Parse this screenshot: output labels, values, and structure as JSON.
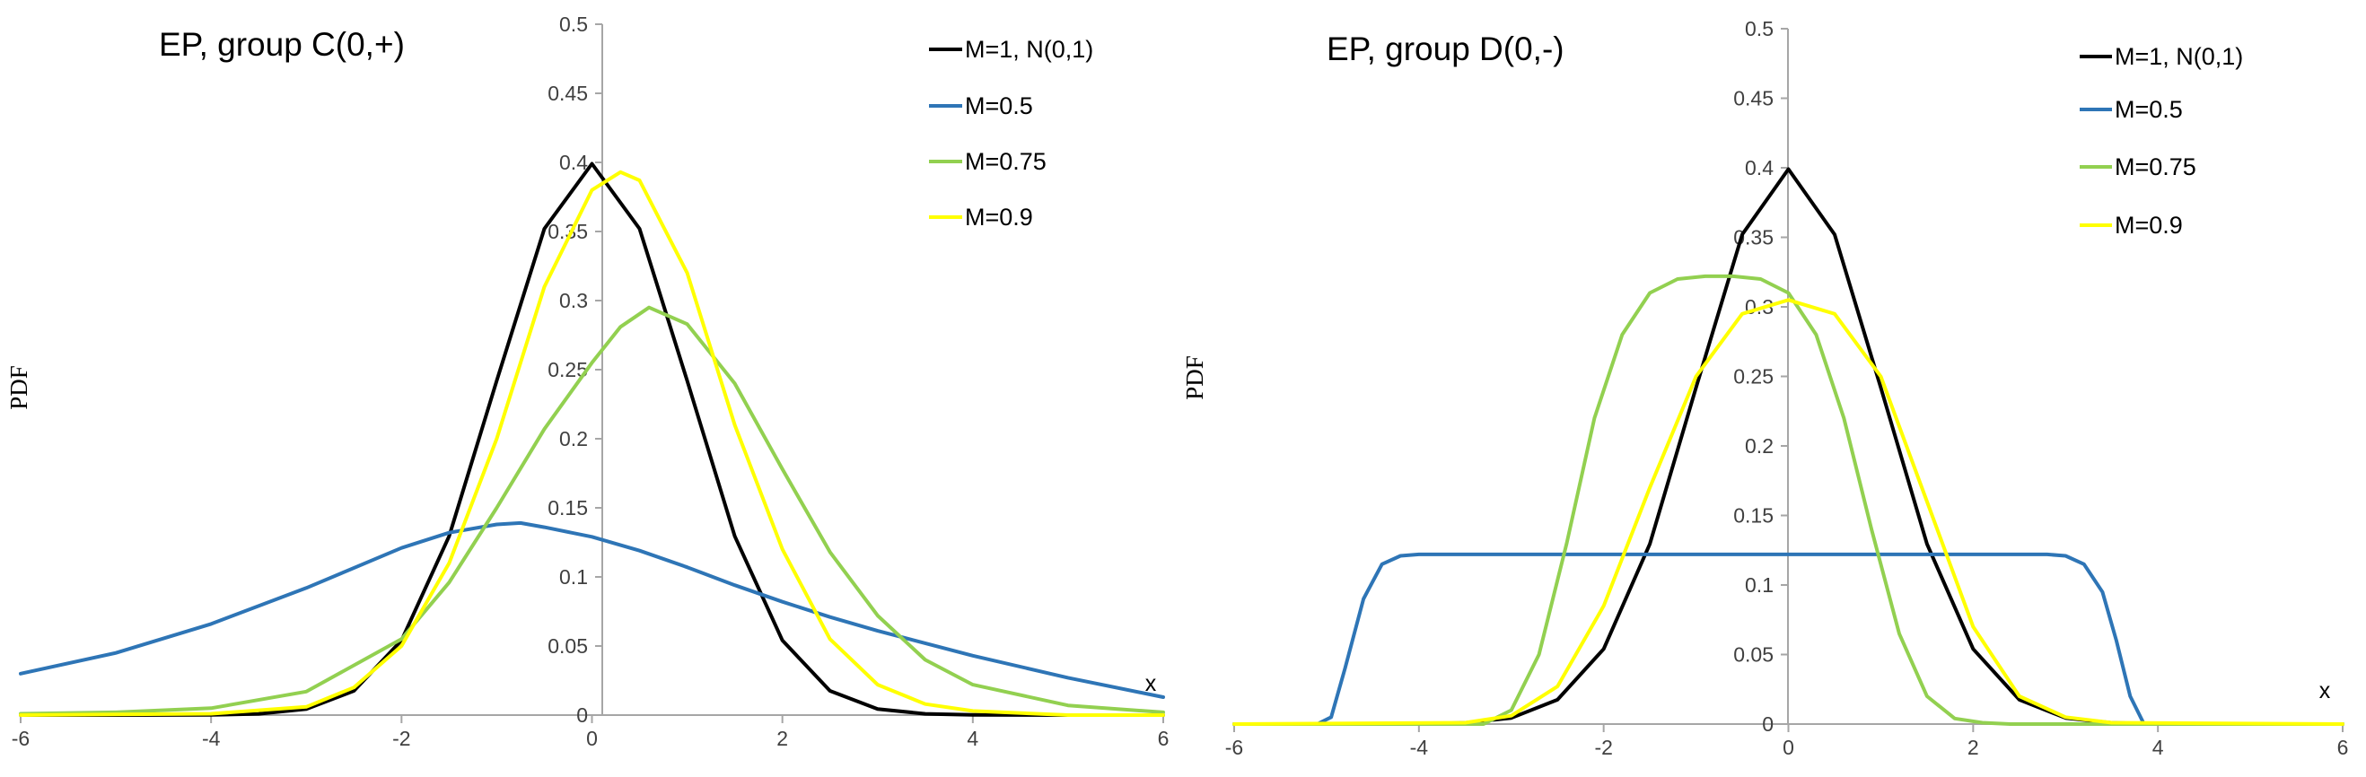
{
  "chart_data": [
    {
      "type": "line",
      "title": "EP, group C(0,+)",
      "xlabel": "x",
      "ylabel": "PDF",
      "xlim": [
        -6,
        6
      ],
      "ylim": [
        0,
        0.5
      ],
      "xticks": [
        "-6",
        "-4",
        "-2",
        "0",
        "2",
        "4",
        "6"
      ],
      "yticks": [
        "0",
        "0.05",
        "0.1",
        "0.15",
        "0.2",
        "0.25",
        "0.3",
        "0.35",
        "0.4",
        "0.45",
        "0.5"
      ],
      "legend_position": "top-right",
      "grid": false,
      "series": [
        {
          "name": "M=1, N(0,1)",
          "color": "#000000",
          "x": [
            -6,
            -5,
            -4,
            -3.5,
            -3,
            -2.5,
            -2,
            -1.5,
            -1,
            -0.5,
            0,
            0.5,
            1,
            1.5,
            2,
            2.5,
            3,
            3.5,
            4,
            5,
            6
          ],
          "y": [
            0,
            0,
            0.0001,
            0.0009,
            0.0044,
            0.0175,
            0.054,
            0.1295,
            0.242,
            0.352,
            0.399,
            0.352,
            0.242,
            0.1295,
            0.054,
            0.0175,
            0.0044,
            0.0009,
            0.0001,
            0,
            0
          ]
        },
        {
          "name": "M=0.5",
          "color": "#2e75b6",
          "x": [
            -6,
            -5,
            -4,
            -3,
            -2,
            -1.5,
            -1,
            -0.75,
            -0.5,
            0,
            0.5,
            1,
            1.5,
            2,
            2.5,
            3,
            4,
            5,
            6
          ],
          "y": [
            0.03,
            0.045,
            0.066,
            0.092,
            0.121,
            0.132,
            0.138,
            0.139,
            0.136,
            0.129,
            0.119,
            0.107,
            0.094,
            0.082,
            0.071,
            0.061,
            0.043,
            0.027,
            0.013
          ]
        },
        {
          "name": "M=0.75",
          "color": "#92d050",
          "x": [
            -6,
            -5,
            -4,
            -3,
            -2,
            -1.5,
            -1,
            -0.5,
            0,
            0.3,
            0.6,
            1,
            1.5,
            2,
            2.5,
            3,
            3.5,
            4,
            5,
            6
          ],
          "y": [
            0.001,
            0.002,
            0.005,
            0.017,
            0.055,
            0.096,
            0.15,
            0.207,
            0.255,
            0.281,
            0.295,
            0.283,
            0.24,
            0.178,
            0.118,
            0.072,
            0.04,
            0.022,
            0.007,
            0.002
          ]
        },
        {
          "name": "M=0.9",
          "color": "#ffff00",
          "x": [
            -6,
            -4,
            -3,
            -2.5,
            -2,
            -1.5,
            -1,
            -0.5,
            0,
            0.3,
            0.5,
            1,
            1.5,
            2,
            2.5,
            3,
            3.5,
            4,
            5,
            6
          ],
          "y": [
            0,
            0.001,
            0.006,
            0.02,
            0.05,
            0.11,
            0.2,
            0.31,
            0.38,
            0.393,
            0.387,
            0.32,
            0.21,
            0.12,
            0.055,
            0.022,
            0.008,
            0.003,
            0,
            0
          ]
        }
      ]
    },
    {
      "type": "line",
      "title": "EP, group D(0,-)",
      "xlabel": "x",
      "ylabel": "PDF",
      "xlim": [
        -6,
        6
      ],
      "ylim": [
        0,
        0.5
      ],
      "xticks": [
        "-6",
        "-4",
        "-2",
        "0",
        "2",
        "4",
        "6"
      ],
      "yticks": [
        "0",
        "0.05",
        "0.1",
        "0.15",
        "0.2",
        "0.25",
        "0.3",
        "0.35",
        "0.4",
        "0.45",
        "0.5"
      ],
      "legend_position": "top-right",
      "grid": false,
      "series": [
        {
          "name": "M=1, N(0,1)",
          "color": "#000000",
          "x": [
            -6,
            -5,
            -4,
            -3.5,
            -3,
            -2.5,
            -2,
            -1.5,
            -1,
            -0.5,
            0,
            0.5,
            1,
            1.5,
            2,
            2.5,
            3,
            3.5,
            4,
            5,
            6
          ],
          "y": [
            0,
            0,
            0.0001,
            0.0009,
            0.0044,
            0.0175,
            0.054,
            0.1295,
            0.242,
            0.352,
            0.399,
            0.352,
            0.242,
            0.1295,
            0.054,
            0.0175,
            0.0044,
            0.0009,
            0.0001,
            0,
            0
          ]
        },
        {
          "name": "M=0.5",
          "color": "#2e75b6",
          "x": [
            -6,
            -5.1,
            -4.95,
            -4.8,
            -4.6,
            -4.4,
            -4.2,
            -4,
            0,
            2.8,
            3,
            3.2,
            3.4,
            3.55,
            3.7,
            3.85,
            6
          ],
          "y": [
            0,
            0,
            0.005,
            0.04,
            0.09,
            0.115,
            0.121,
            0.122,
            0.122,
            0.122,
            0.121,
            0.115,
            0.095,
            0.06,
            0.02,
            0,
            0
          ]
        },
        {
          "name": "M=0.75",
          "color": "#92d050",
          "x": [
            -6,
            -3.3,
            -3,
            -2.7,
            -2.4,
            -2.1,
            -1.8,
            -1.5,
            -1.2,
            -0.9,
            -0.6,
            -0.3,
            0,
            0.3,
            0.6,
            0.9,
            1.2,
            1.5,
            1.8,
            2.1,
            2.4,
            6
          ],
          "y": [
            0,
            0,
            0.01,
            0.05,
            0.13,
            0.22,
            0.28,
            0.31,
            0.32,
            0.322,
            0.322,
            0.32,
            0.31,
            0.28,
            0.22,
            0.14,
            0.065,
            0.02,
            0.004,
            0.001,
            0,
            0
          ]
        },
        {
          "name": "M=0.9",
          "color": "#ffff00",
          "x": [
            -6,
            -3.5,
            -3,
            -2.5,
            -2,
            -1.5,
            -1,
            -0.5,
            0,
            0.5,
            1,
            1.5,
            2,
            2.5,
            3,
            3.5,
            6
          ],
          "y": [
            0,
            0.001,
            0.006,
            0.027,
            0.085,
            0.17,
            0.25,
            0.295,
            0.305,
            0.295,
            0.25,
            0.16,
            0.07,
            0.02,
            0.005,
            0.001,
            0
          ]
        }
      ]
    }
  ]
}
